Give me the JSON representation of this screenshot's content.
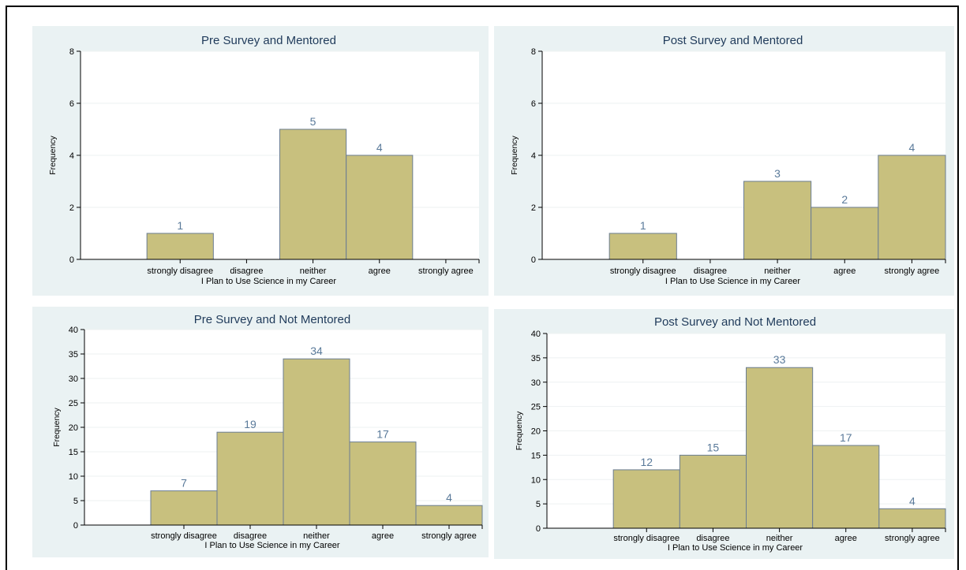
{
  "colors": {
    "panel_bg": "#eaf2f3",
    "plot_bg": "#ffffff",
    "bar_fill": "#c8c07e",
    "bar_stroke": "#6b7d92",
    "title": "#1f3a5a",
    "data_label": "#5a7a9a"
  },
  "chart_data": [
    {
      "type": "bar",
      "title": "Pre Survey and Mentored",
      "xlabel": "I Plan to Use Science in my Career",
      "ylabel": "Frequency",
      "categories": [
        "strongly disagree",
        "disagree",
        "neither",
        "agree",
        "strongly agree"
      ],
      "values": [
        1,
        0,
        5,
        4,
        0
      ],
      "value_labels": [
        "1",
        "",
        "5",
        "4",
        ""
      ],
      "ylim": [
        0,
        8
      ],
      "yticks": [
        0,
        2,
        4,
        6,
        8
      ]
    },
    {
      "type": "bar",
      "title": "Post Survey and Mentored",
      "xlabel": "I Plan to Use Science in my Career",
      "ylabel": "Frequency",
      "categories": [
        "strongly disagree",
        "disagree",
        "neither",
        "agree",
        "strongly agree"
      ],
      "values": [
        1,
        0,
        3,
        2,
        4
      ],
      "value_labels": [
        "1",
        "",
        "3",
        "2",
        "4"
      ],
      "ylim": [
        0,
        8
      ],
      "yticks": [
        0,
        2,
        4,
        6,
        8
      ]
    },
    {
      "type": "bar",
      "title": "Pre Survey and Not Mentored",
      "xlabel": "I Plan to Use Science in my Career",
      "ylabel": "Frequency",
      "categories": [
        "strongly disagree",
        "disagree",
        "neither",
        "agree",
        "strongly agree"
      ],
      "values": [
        7,
        19,
        34,
        17,
        4
      ],
      "value_labels": [
        "7",
        "19",
        "34",
        "17",
        "4"
      ],
      "ylim": [
        0,
        40
      ],
      "yticks": [
        0,
        5,
        10,
        15,
        20,
        25,
        30,
        35,
        40
      ]
    },
    {
      "type": "bar",
      "title": "Post Survey and Not Mentored",
      "xlabel": "I Plan to Use Science in my Career",
      "ylabel": "Frequency",
      "categories": [
        "strongly disagree",
        "disagree",
        "neither",
        "agree",
        "strongly agree"
      ],
      "values": [
        12,
        15,
        33,
        17,
        4
      ],
      "value_labels": [
        "12",
        "15",
        "33",
        "17",
        "4"
      ],
      "ylim": [
        0,
        40
      ],
      "yticks": [
        0,
        5,
        10,
        15,
        20,
        25,
        30,
        35,
        40
      ]
    }
  ]
}
